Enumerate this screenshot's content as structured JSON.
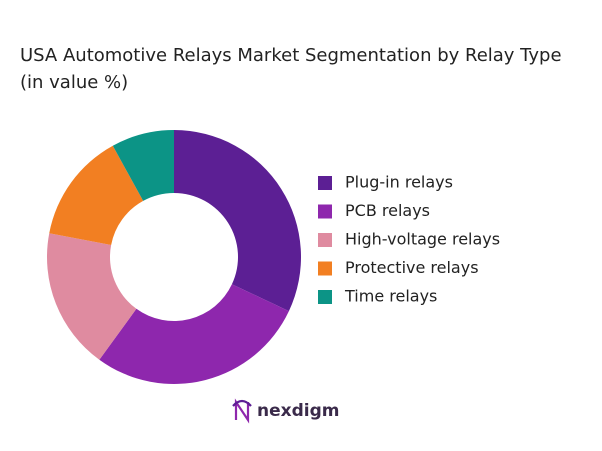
{
  "chart_data": {
    "type": "donut",
    "title": "USA Automotive Relays Market Segmentation by Relay Type (in value %)",
    "categories": [
      "Plug-in relays",
      "PCB relays",
      "High-voltage relays",
      "Protective relays",
      "Time relays"
    ],
    "values": [
      32,
      28,
      18,
      14,
      8
    ],
    "colors": [
      "#5c1f94",
      "#8e27ad",
      "#df8ba0",
      "#f27f22",
      "#0c9486"
    ],
    "legend": "right"
  },
  "logo": "nexdigm"
}
